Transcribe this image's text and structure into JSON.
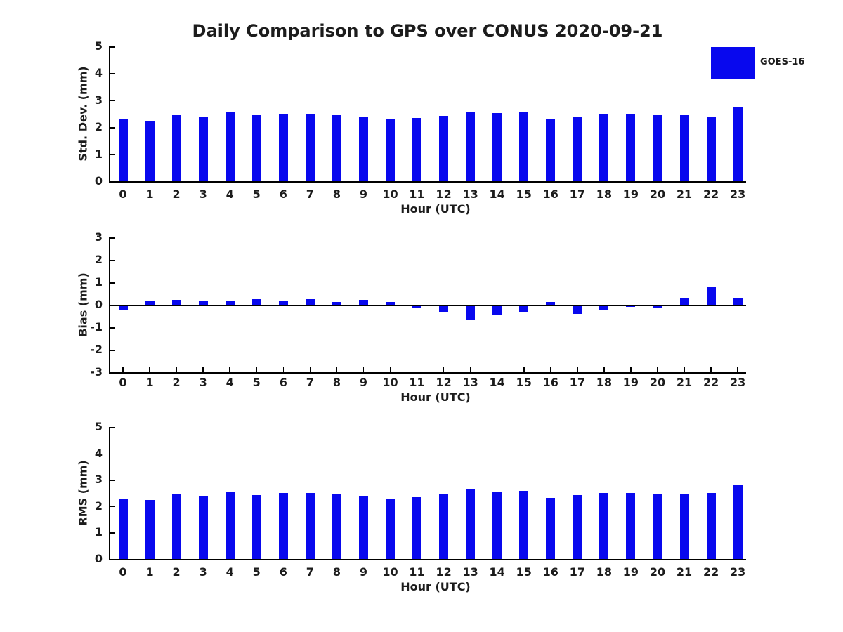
{
  "title": "Daily Comparison to GPS over CONUS 2020-09-21",
  "legend": {
    "label": "GOES-16",
    "swatch_color": "#0808ee"
  },
  "colors": {
    "bar": "#0808ee",
    "text": "#1c1c1c",
    "axis": "#000000"
  },
  "chart_data": [
    {
      "type": "bar",
      "series_name": "GOES-16",
      "ylabel": "Std. Dev. (mm)",
      "xlabel": "Hour (UTC)",
      "categories": [
        "0",
        "1",
        "2",
        "3",
        "4",
        "5",
        "6",
        "7",
        "8",
        "9",
        "10",
        "11",
        "12",
        "13",
        "14",
        "15",
        "16",
        "17",
        "18",
        "19",
        "20",
        "21",
        "22",
        "23"
      ],
      "values": [
        2.28,
        2.23,
        2.44,
        2.38,
        2.54,
        2.44,
        2.49,
        2.49,
        2.46,
        2.38,
        2.28,
        2.35,
        2.41,
        2.55,
        2.52,
        2.57,
        2.3,
        2.38,
        2.49,
        2.49,
        2.46,
        2.44,
        2.38,
        2.77
      ],
      "ylim": [
        0,
        5
      ],
      "yticks": [
        5,
        4,
        3,
        2,
        1,
        0
      ],
      "grid": false,
      "legend_position": "upper-right-outside"
    },
    {
      "type": "bar",
      "series_name": "GOES-16",
      "ylabel": "Bias (mm)",
      "xlabel": "Hour (UTC)",
      "categories": [
        "0",
        "1",
        "2",
        "3",
        "4",
        "5",
        "6",
        "7",
        "8",
        "9",
        "10",
        "11",
        "12",
        "13",
        "14",
        "15",
        "16",
        "17",
        "18",
        "19",
        "20",
        "21",
        "22",
        "23"
      ],
      "values": [
        -0.2,
        0.17,
        0.22,
        0.16,
        0.18,
        0.24,
        0.16,
        0.24,
        0.13,
        0.22,
        0.13,
        -0.09,
        -0.26,
        -0.63,
        -0.43,
        -0.29,
        0.12,
        -0.36,
        -0.21,
        -0.06,
        -0.1,
        0.31,
        0.82,
        0.32
      ],
      "ylim": [
        -3,
        3
      ],
      "yticks": [
        3,
        2,
        1,
        0,
        -1,
        -2,
        -3
      ],
      "grid": false,
      "legend_position": "none"
    },
    {
      "type": "bar",
      "series_name": "GOES-16",
      "ylabel": "RMS (mm)",
      "xlabel": "Hour (UTC)",
      "categories": [
        "0",
        "1",
        "2",
        "3",
        "4",
        "5",
        "6",
        "7",
        "8",
        "9",
        "10",
        "11",
        "12",
        "13",
        "14",
        "15",
        "16",
        "17",
        "18",
        "19",
        "20",
        "21",
        "22",
        "23"
      ],
      "values": [
        2.29,
        2.24,
        2.45,
        2.38,
        2.53,
        2.42,
        2.5,
        2.5,
        2.44,
        2.39,
        2.29,
        2.33,
        2.44,
        2.62,
        2.54,
        2.57,
        2.31,
        2.41,
        2.5,
        2.49,
        2.44,
        2.45,
        2.49,
        2.78
      ],
      "ylim": [
        0,
        5
      ],
      "yticks": [
        5,
        4,
        3,
        2,
        1,
        0
      ],
      "grid": false,
      "legend_position": "none"
    }
  ]
}
